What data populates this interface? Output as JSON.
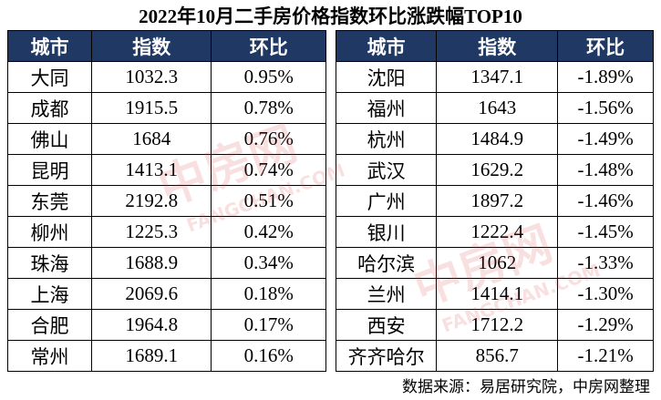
{
  "title": "2022年10月二手房价格指数环比涨跌幅TOP10",
  "tables": [
    {
      "header": [
        "城市",
        "指数",
        "环比"
      ],
      "rows": [
        [
          "大同",
          "1032.3",
          "0.95%"
        ],
        [
          "成都",
          "1915.5",
          "0.78%"
        ],
        [
          "佛山",
          "1684",
          "0.76%"
        ],
        [
          "昆明",
          "1413.1",
          "0.74%"
        ],
        [
          "东莞",
          "2192.8",
          "0.51%"
        ],
        [
          "柳州",
          "1225.3",
          "0.42%"
        ],
        [
          "珠海",
          "1688.9",
          "0.34%"
        ],
        [
          "上海",
          "2069.6",
          "0.18%"
        ],
        [
          "合肥",
          "1964.8",
          "0.17%"
        ],
        [
          "常州",
          "1689.1",
          "0.16%"
        ]
      ]
    },
    {
      "header": [
        "城市",
        "指数",
        "环比"
      ],
      "rows": [
        [
          "沈阳",
          "1347.1",
          "-1.89%"
        ],
        [
          "福州",
          "1643",
          "-1.56%"
        ],
        [
          "杭州",
          "1484.9",
          "-1.49%"
        ],
        [
          "武汉",
          "1629.2",
          "-1.48%"
        ],
        [
          "广州",
          "1897.2",
          "-1.46%"
        ],
        [
          "银川",
          "1222.4",
          "-1.45%"
        ],
        [
          "哈尔滨",
          "1062",
          "-1.33%"
        ],
        [
          "兰州",
          "1414.1",
          "-1.30%"
        ],
        [
          "西安",
          "1712.2",
          "-1.29%"
        ],
        [
          "齐齐哈尔",
          "856.7",
          "-1.21%"
        ]
      ]
    }
  ],
  "watermark": [
    "中房网",
    "FANGCHAN.COM"
  ],
  "source": "数据来源：易居研究院，中房网整理"
}
